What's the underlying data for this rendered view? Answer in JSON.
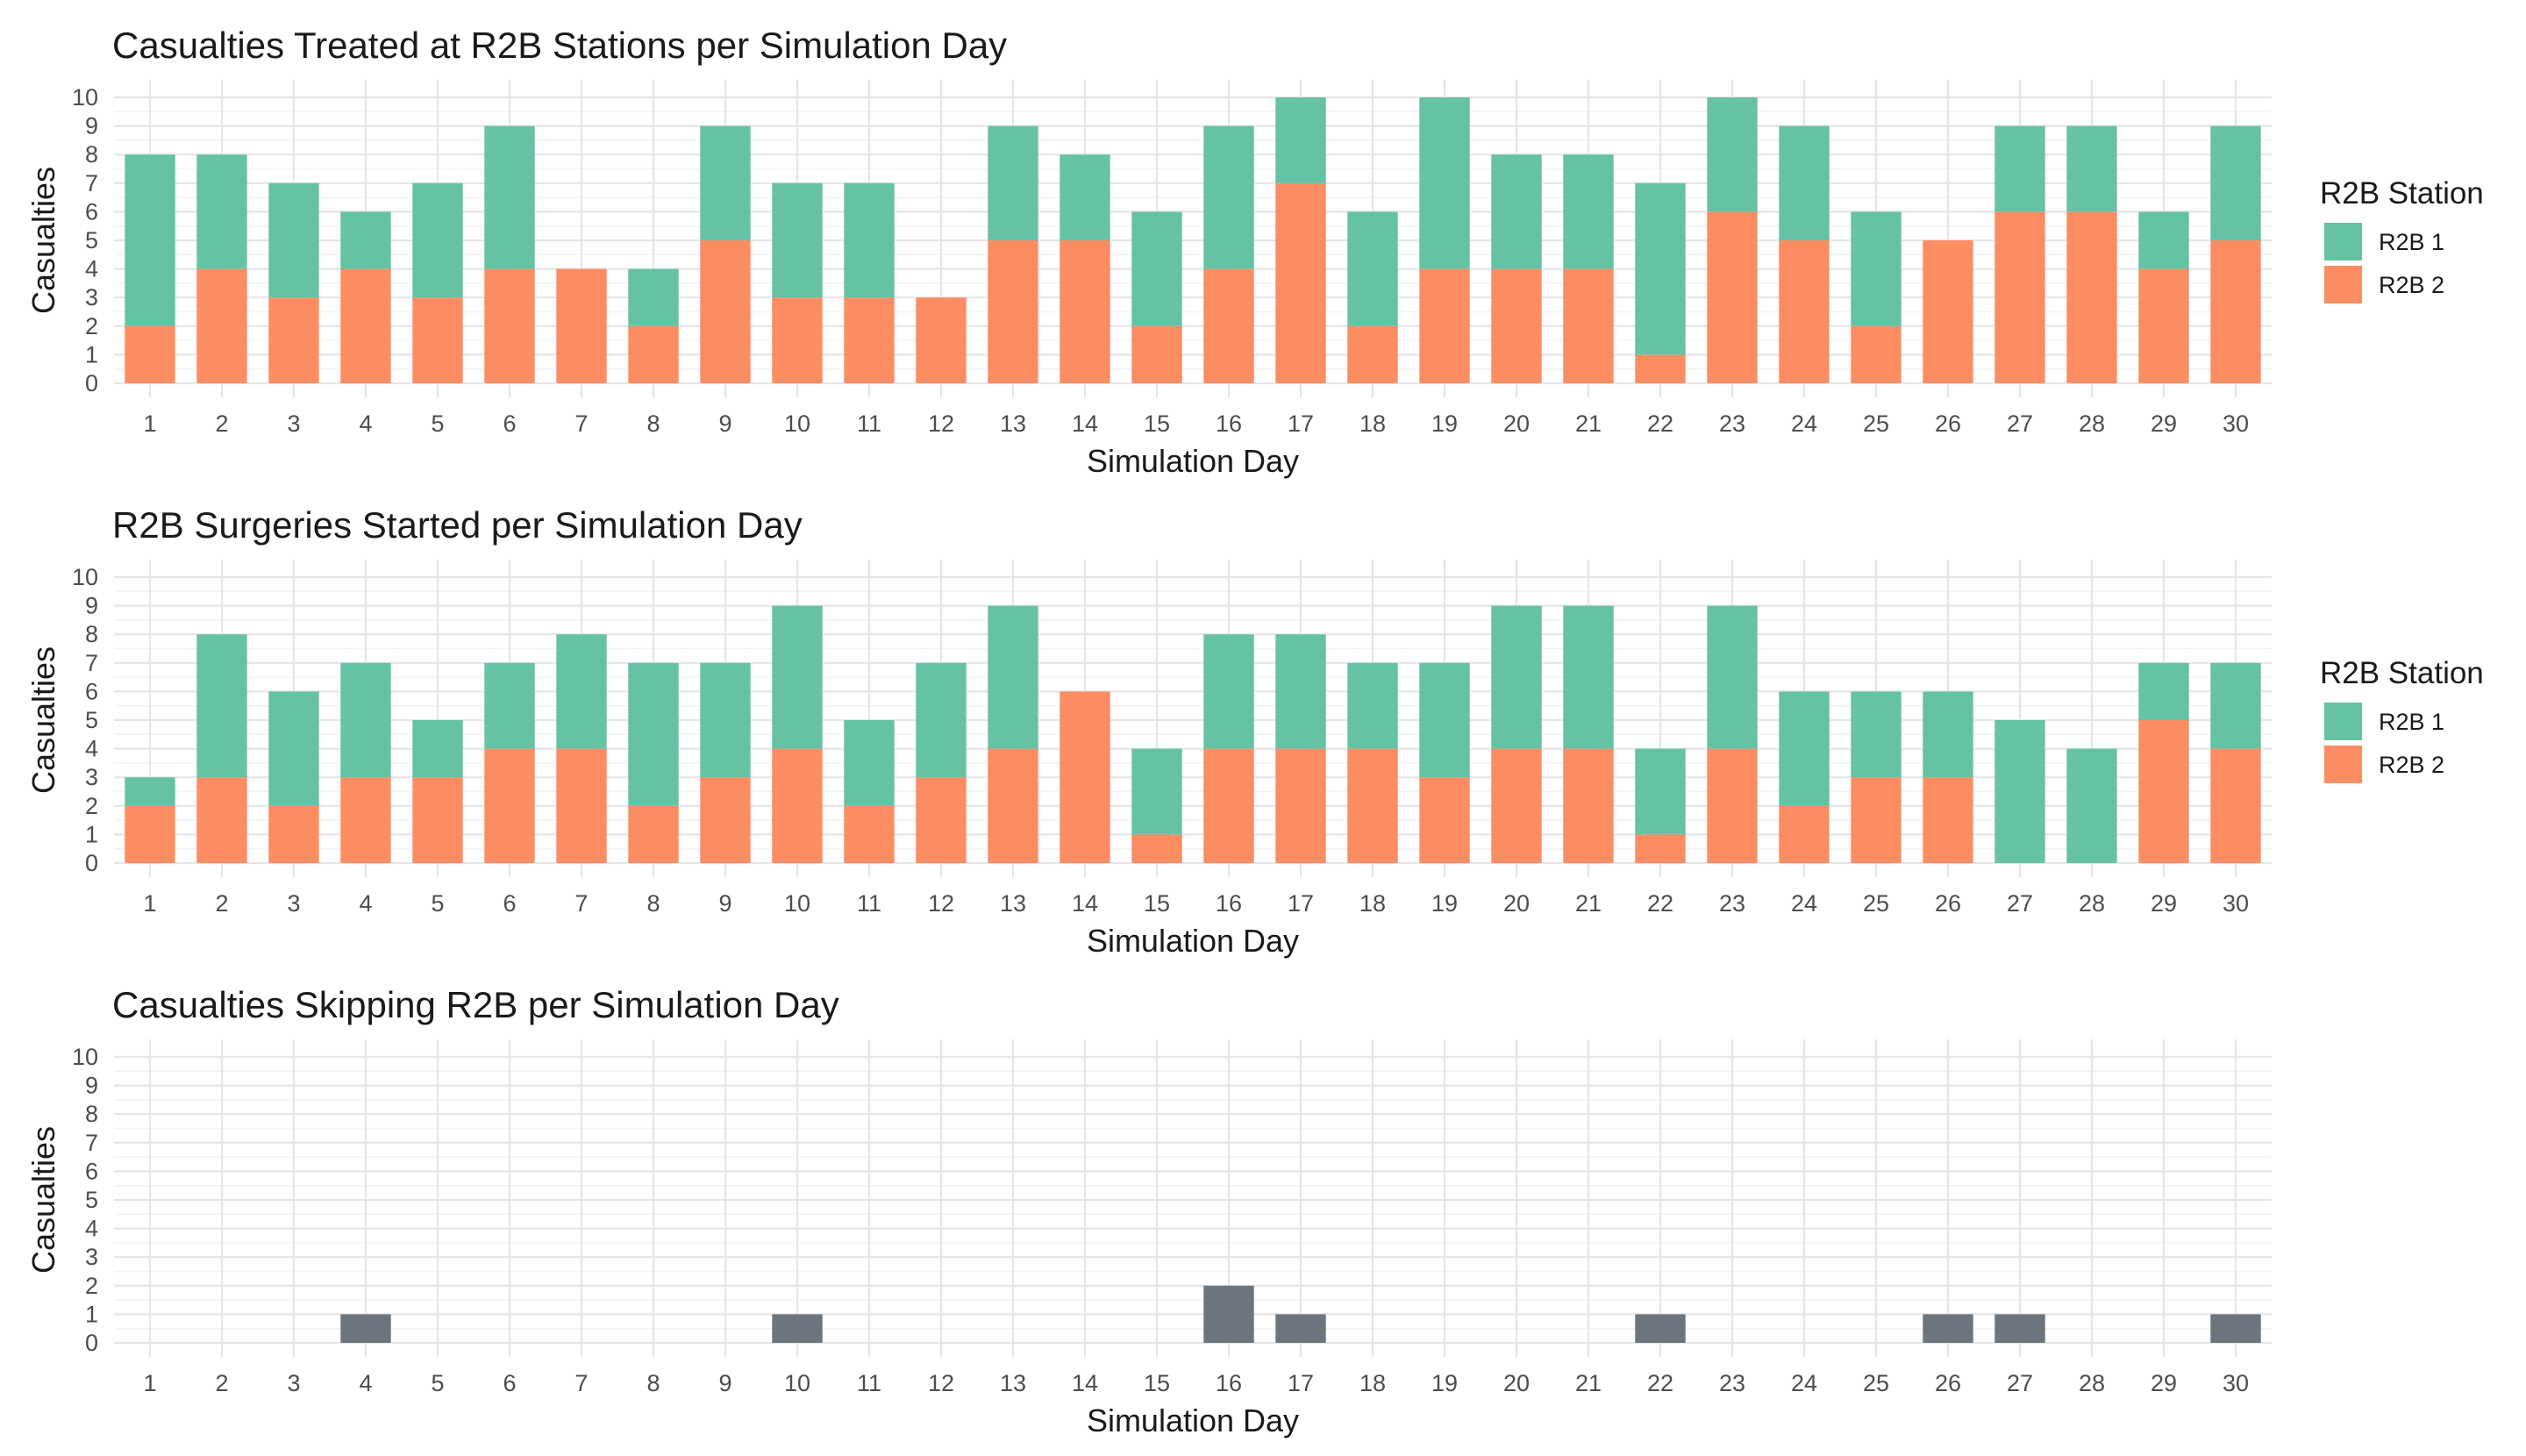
{
  "colors": {
    "r2b1": "#66C2A5",
    "r2b2": "#FC8D62",
    "skip": "#6C757D",
    "grid_major": "#e6e6e6",
    "grid_minor": "#f2f2f2"
  },
  "chart_data": [
    {
      "type": "bar",
      "stacked": true,
      "title": "Casualties Treated at R2B Stations per Simulation Day",
      "xlabel": "Simulation Day",
      "ylabel": "Casualties",
      "ylim": [
        0,
        10
      ],
      "yticks": [
        "0",
        "1",
        "2",
        "3",
        "4",
        "5",
        "6",
        "7",
        "8",
        "9",
        "10"
      ],
      "categories": [
        "1",
        "2",
        "3",
        "4",
        "5",
        "6",
        "7",
        "8",
        "9",
        "10",
        "11",
        "12",
        "13",
        "14",
        "15",
        "16",
        "17",
        "18",
        "19",
        "20",
        "21",
        "22",
        "23",
        "24",
        "25",
        "26",
        "27",
        "28",
        "29",
        "30"
      ],
      "legend": {
        "title": "R2B Station",
        "position": "right"
      },
      "series": [
        {
          "name": "R2B 2",
          "color_key": "r2b2",
          "values": [
            2,
            4,
            3,
            4,
            3,
            4,
            4,
            2,
            5,
            3,
            3,
            3,
            5,
            5,
            2,
            4,
            7,
            2,
            4,
            4,
            4,
            1,
            6,
            5,
            2,
            5,
            6,
            6,
            4,
            5
          ]
        },
        {
          "name": "R2B 1",
          "color_key": "r2b1",
          "values": [
            6,
            4,
            4,
            2,
            4,
            5,
            0,
            2,
            4,
            4,
            4,
            0,
            4,
            3,
            4,
            5,
            3,
            4,
            6,
            4,
            4,
            6,
            4,
            4,
            4,
            0,
            3,
            3,
            2,
            4
          ]
        }
      ]
    },
    {
      "type": "bar",
      "stacked": true,
      "title": "R2B Surgeries Started per Simulation Day",
      "xlabel": "Simulation Day",
      "ylabel": "Casualties",
      "ylim": [
        0,
        10
      ],
      "yticks": [
        "0",
        "1",
        "2",
        "3",
        "4",
        "5",
        "6",
        "7",
        "8",
        "9",
        "10"
      ],
      "categories": [
        "1",
        "2",
        "3",
        "4",
        "5",
        "6",
        "7",
        "8",
        "9",
        "10",
        "11",
        "12",
        "13",
        "14",
        "15",
        "16",
        "17",
        "18",
        "19",
        "20",
        "21",
        "22",
        "23",
        "24",
        "25",
        "26",
        "27",
        "28",
        "29",
        "30"
      ],
      "legend": {
        "title": "R2B Station",
        "position": "right"
      },
      "series": [
        {
          "name": "R2B 2",
          "color_key": "r2b2",
          "values": [
            2,
            3,
            2,
            3,
            3,
            4,
            4,
            2,
            3,
            4,
            2,
            3,
            4,
            6,
            1,
            4,
            4,
            4,
            3,
            4,
            4,
            1,
            4,
            2,
            3,
            3,
            0,
            0,
            5,
            4
          ]
        },
        {
          "name": "R2B 1",
          "color_key": "r2b1",
          "values": [
            1,
            5,
            4,
            4,
            2,
            3,
            4,
            5,
            4,
            5,
            3,
            4,
            5,
            0,
            3,
            4,
            4,
            3,
            4,
            5,
            5,
            3,
            5,
            4,
            3,
            3,
            5,
            4,
            2,
            3
          ]
        }
      ]
    },
    {
      "type": "bar",
      "stacked": false,
      "title": "Casualties Skipping R2B per Simulation Day",
      "xlabel": "Simulation Day",
      "ylabel": "Casualties",
      "ylim": [
        0,
        10
      ],
      "yticks": [
        "0",
        "1",
        "2",
        "3",
        "4",
        "5",
        "6",
        "7",
        "8",
        "9",
        "10"
      ],
      "categories": [
        "1",
        "2",
        "3",
        "4",
        "5",
        "6",
        "7",
        "8",
        "9",
        "10",
        "11",
        "12",
        "13",
        "14",
        "15",
        "16",
        "17",
        "18",
        "19",
        "20",
        "21",
        "22",
        "23",
        "24",
        "25",
        "26",
        "27",
        "28",
        "29",
        "30"
      ],
      "legend": null,
      "series": [
        {
          "color_key": "skip",
          "values": [
            0,
            0,
            0,
            1,
            0,
            0,
            0,
            0,
            0,
            1,
            0,
            0,
            0,
            0,
            0,
            2,
            1,
            0,
            0,
            0,
            0,
            1,
            0,
            0,
            0,
            1,
            1,
            0,
            0,
            1
          ]
        }
      ]
    }
  ]
}
